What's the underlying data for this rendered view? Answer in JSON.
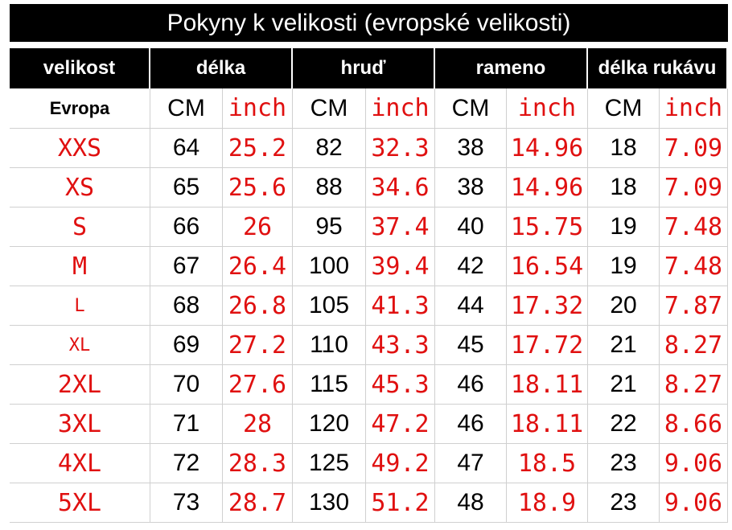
{
  "title": "Pokyny k velikosti (evropské velikosti)",
  "table": {
    "header": [
      "velikost",
      "délka",
      "hruď",
      "rameno",
      "délka rukávu"
    ],
    "subheader": [
      "Evropa",
      "CM",
      "inch",
      "CM",
      "inch",
      "CM",
      "inch",
      "CM",
      "inch"
    ],
    "rows": [
      [
        "XXS",
        64,
        25.2,
        82,
        32.3,
        38,
        14.96,
        18,
        7.09
      ],
      [
        "XS",
        65,
        25.6,
        88,
        34.6,
        38,
        14.96,
        18,
        7.09
      ],
      [
        "S",
        66,
        26,
        95,
        37.4,
        40,
        15.75,
        19,
        7.48
      ],
      [
        "M",
        67,
        26.4,
        100,
        39.4,
        42,
        16.54,
        19,
        7.48
      ],
      [
        "L",
        68,
        26.8,
        105,
        41.3,
        44,
        17.32,
        20,
        7.87
      ],
      [
        "XL",
        69,
        27.2,
        110,
        43.3,
        45,
        17.72,
        21,
        8.27
      ],
      [
        "2XL",
        70,
        27.6,
        115,
        45.3,
        46,
        18.11,
        21,
        8.27
      ],
      [
        "3XL",
        71,
        28,
        120,
        47.2,
        46,
        18.11,
        22,
        8.66
      ],
      [
        "4XL",
        72,
        28.3,
        125,
        49.2,
        47,
        18.5,
        23,
        9.06
      ],
      [
        "5XL",
        73,
        28.7,
        130,
        51.2,
        48,
        18.9,
        23,
        9.06
      ]
    ]
  }
}
